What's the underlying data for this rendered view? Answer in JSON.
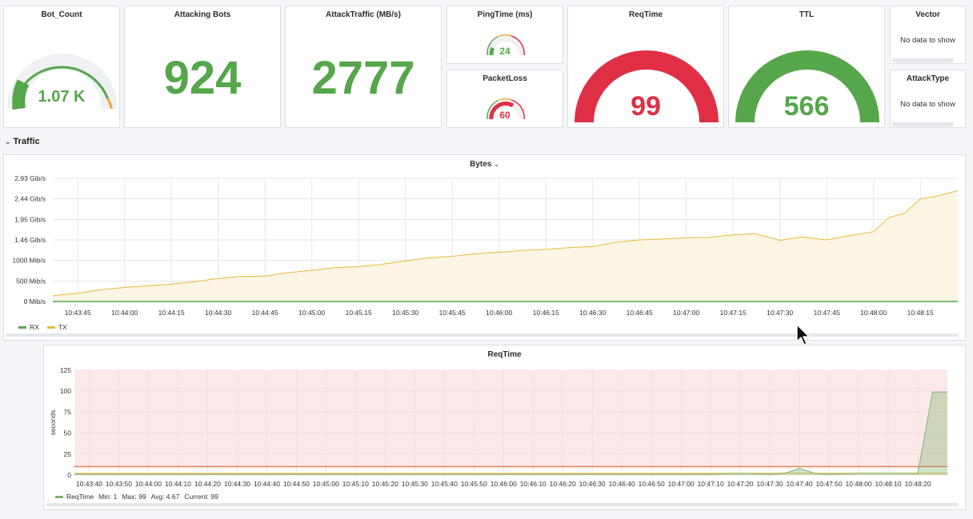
{
  "colors": {
    "green": "#56a64b",
    "red": "#e02f44",
    "orange": "#f2a73b",
    "yellow": "#e8b936",
    "gauge_bg": "#eef0f4",
    "area_fill": "#fdf5e4",
    "threshold_fill": "#fbe9e9"
  },
  "panels": {
    "bot_count": {
      "title": "Bot_Count",
      "value": "1.07 K"
    },
    "attacking_bots": {
      "title": "Attacking Bots",
      "value": "924"
    },
    "attack_traffic": {
      "title": "AttackTraffic (MB/s)",
      "value": "2777"
    },
    "ping_time": {
      "title": "PingTime (ms)",
      "value": "24"
    },
    "packet_loss": {
      "title": "PacketLoss",
      "value": "60"
    },
    "req_time": {
      "title": "ReqTime",
      "value": "99"
    },
    "ttl": {
      "title": "TTL",
      "value": "566"
    },
    "vector": {
      "title": "Vector",
      "message": "No data to show"
    },
    "attack_type": {
      "title": "AttackType",
      "message": "No data to show"
    }
  },
  "row": {
    "title": "Traffic",
    "chevron_icon": "chevron-down-icon"
  },
  "bytes_panel": {
    "title": "Bytes",
    "title_icon": "chevron-down-icon",
    "legend": [
      {
        "name": "RX",
        "color": "#56a64b"
      },
      {
        "name": "TX",
        "color": "#e8b936"
      }
    ]
  },
  "reqtime_panel": {
    "title": "ReqTime",
    "legend": {
      "name": "ReqTime",
      "min": "Min: 1",
      "max": "Max: 99",
      "avg": "Avg: 4.67",
      "current": "Current: 99"
    }
  },
  "chart_data": [
    {
      "type": "area",
      "title": "Bytes",
      "xlabel": "",
      "ylabel": "",
      "y_tick_labels": [
        "0 Mib/s",
        "500 Mib/s",
        "1000 Mib/s",
        "1.46 Gib/s",
        "1.95 Gib/s",
        "2.44 Gib/s",
        "2.93 Gib/s"
      ],
      "y_tick_values": [
        0,
        500,
        1000,
        1500,
        2000,
        2500,
        3000
      ],
      "ylim": [
        0,
        3000
      ],
      "x_tick_labels": [
        "10:43:45",
        "10:44:00",
        "10:44:15",
        "10:44:30",
        "10:44:45",
        "10:45:00",
        "10:45:15",
        "10:45:30",
        "10:45:45",
        "10:46:00",
        "10:46:15",
        "10:46:30",
        "10:46:45",
        "10:47:00",
        "10:47:15",
        "10:47:30",
        "10:47:45",
        "10:48:00",
        "10:48:15"
      ],
      "x_range": [
        "10:43:37",
        "10:48:27"
      ],
      "grid": true,
      "legend_position": "bottom-left",
      "series": [
        {
          "name": "RX",
          "x": [
            "10:43:37",
            "10:48:27"
          ],
          "values": [
            0,
            0
          ]
        },
        {
          "name": "TX",
          "x": [
            "10:43:37",
            "10:43:45",
            "10:43:52",
            "10:44:00",
            "10:44:07",
            "10:44:15",
            "10:44:22",
            "10:44:30",
            "10:44:37",
            "10:44:45",
            "10:44:52",
            "10:45:00",
            "10:45:07",
            "10:45:15",
            "10:45:22",
            "10:45:30",
            "10:45:37",
            "10:45:45",
            "10:45:52",
            "10:46:00",
            "10:46:07",
            "10:46:15",
            "10:46:22",
            "10:46:30",
            "10:46:37",
            "10:46:45",
            "10:46:52",
            "10:47:00",
            "10:47:07",
            "10:47:15",
            "10:47:22",
            "10:47:30",
            "10:47:37",
            "10:47:45",
            "10:47:52",
            "10:48:00",
            "10:48:05",
            "10:48:10",
            "10:48:15",
            "10:48:20",
            "10:48:27"
          ],
          "values": [
            140,
            200,
            285,
            340,
            380,
            420,
            480,
            560,
            610,
            620,
            700,
            760,
            820,
            850,
            900,
            990,
            1060,
            1100,
            1160,
            1200,
            1240,
            1270,
            1310,
            1340,
            1440,
            1500,
            1520,
            1550,
            1560,
            1620,
            1650,
            1490,
            1570,
            1500,
            1600,
            1700,
            2050,
            2150,
            2500,
            2560,
            2700
          ]
        }
      ]
    },
    {
      "type": "line",
      "title": "ReqTime",
      "xlabel": "",
      "ylabel": "seconds",
      "y_tick_labels": [
        "0",
        "25",
        "50",
        "75",
        "100",
        "125"
      ],
      "ylim": [
        0,
        125
      ],
      "x_tick_labels": [
        "10:43:40",
        "10:43:50",
        "10:44:00",
        "10:44:10",
        "10:44:20",
        "10:44:30",
        "10:44:40",
        "10:44:50",
        "10:45:00",
        "10:45:10",
        "10:45:20",
        "10:45:30",
        "10:45:40",
        "10:45:50",
        "10:46:00",
        "10:46:10",
        "10:46:20",
        "10:46:30",
        "10:46:40",
        "10:46:50",
        "10:47:00",
        "10:47:10",
        "10:47:20",
        "10:47:30",
        "10:47:40",
        "10:47:50",
        "10:48:00",
        "10:48:10",
        "10:48:20"
      ],
      "x_range": [
        "10:43:35",
        "10:48:30"
      ],
      "grid": true,
      "thresholds": [
        {
          "value": 10,
          "color": "#e02f44",
          "fill_above": true
        },
        {
          "value": 2,
          "color": "#e8b936",
          "fill_above": false
        }
      ],
      "legend_position": "bottom-left",
      "series": [
        {
          "name": "ReqTime",
          "x": [
            "10:43:35",
            "10:47:10",
            "10:47:20",
            "10:47:30",
            "10:47:35",
            "10:47:40",
            "10:47:45",
            "10:47:50",
            "10:48:00",
            "10:48:10",
            "10:48:20",
            "10:48:25",
            "10:48:30"
          ],
          "values": [
            1,
            1,
            2,
            1,
            2,
            8,
            2,
            1,
            2,
            2,
            2,
            99,
            99
          ]
        }
      ]
    }
  ]
}
